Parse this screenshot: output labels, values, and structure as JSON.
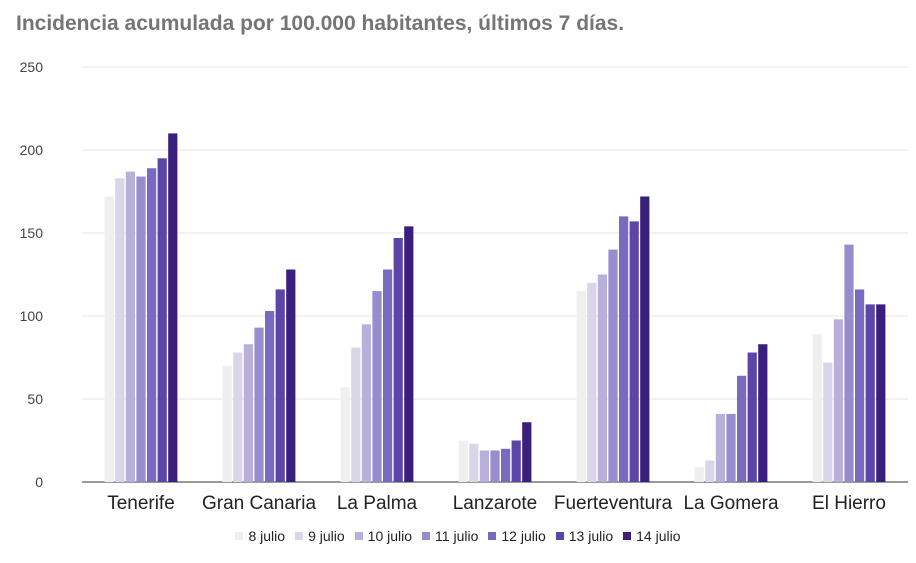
{
  "chart_data": {
    "type": "bar",
    "title": "Incidencia acumulada por 100.000 habitantes, últimos 7 días.",
    "xlabel": "",
    "ylabel": "",
    "ylim": [
      0,
      250
    ],
    "yticks": [
      "0",
      "50",
      "100",
      "150",
      "200",
      "250"
    ],
    "grid": true,
    "legend_position": "bottom",
    "categories": [
      "Tenerife",
      "Gran Canaria",
      "La Palma",
      "Lanzarote",
      "Fuerteventura",
      "La Gomera",
      "El Hierro"
    ],
    "series": [
      {
        "name": "8 julio",
        "color": "#efefef",
        "values": [
          172,
          70,
          57,
          25,
          115,
          9,
          89
        ]
      },
      {
        "name": "9 julio",
        "color": "#dad6ea",
        "values": [
          183,
          78,
          81,
          23,
          120,
          13,
          72
        ]
      },
      {
        "name": "10 julio",
        "color": "#b9afdb",
        "values": [
          187,
          83,
          95,
          19,
          125,
          41,
          98
        ]
      },
      {
        "name": "11 julio",
        "color": "#978ccd",
        "values": [
          184,
          93,
          115,
          19,
          140,
          41,
          143
        ]
      },
      {
        "name": "12 julio",
        "color": "#7a6abf",
        "values": [
          189,
          103,
          128,
          20,
          160,
          64,
          116
        ]
      },
      {
        "name": "13 julio",
        "color": "#5b45a8",
        "values": [
          195,
          116,
          147,
          25,
          157,
          78,
          107
        ]
      },
      {
        "name": "14 julio",
        "color": "#3b1f7d",
        "values": [
          210,
          128,
          154,
          36,
          172,
          83,
          107
        ]
      }
    ]
  }
}
